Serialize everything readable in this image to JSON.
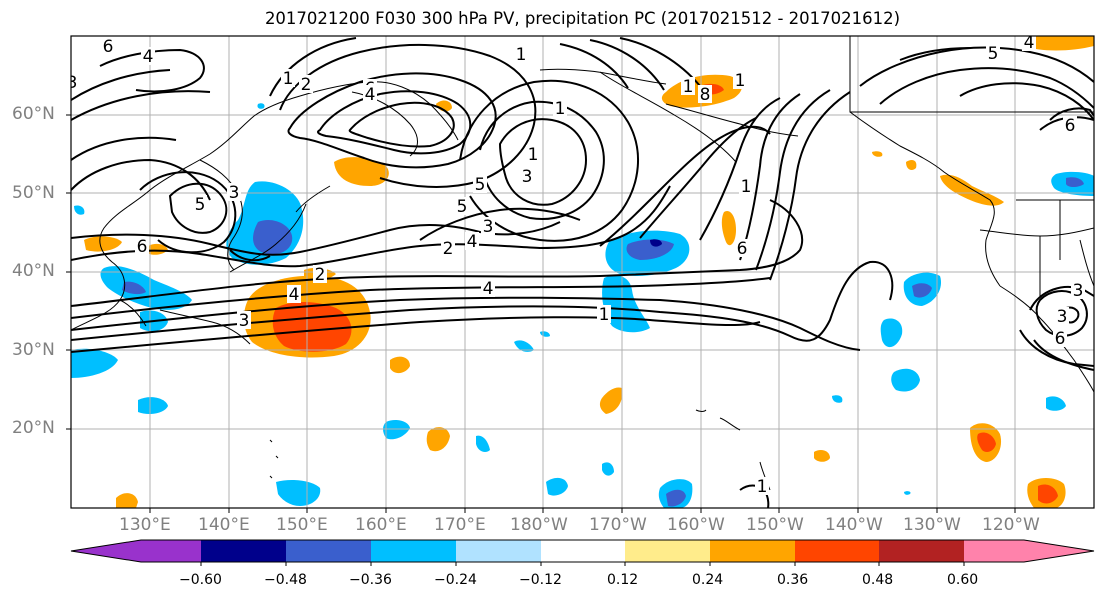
{
  "title": "2017021200 F030 300 hPa PV, precipitation PC (2017021512 - 2017021612)",
  "lat_labels": [
    "60°N",
    "50°N",
    "40°N",
    "30°N",
    "20°N"
  ],
  "lon_labels": [
    "130°E",
    "140°E",
    "150°E",
    "160°E",
    "170°E",
    "180°W",
    "170°W",
    "160°W",
    "150°W",
    "140°W",
    "130°W",
    "120°W"
  ],
  "colorbar": {
    "ticks": [
      "−0.60",
      "−0.48",
      "−0.36",
      "−0.24",
      "−0.12",
      "0.12",
      "0.24",
      "0.36",
      "0.48",
      "0.60"
    ],
    "colors": [
      "#9932cc",
      "#00008b",
      "#3a5fcd",
      "#00bfff",
      "#b0e2ff",
      "#ffffff",
      "#ffec8b",
      "#ffa500",
      "#ff4500",
      "#b22222",
      "#ff82ab"
    ]
  },
  "contour_labels": [
    "6",
    "4",
    "3",
    "1",
    "2",
    "5",
    "3",
    "6",
    "5",
    "4",
    "1",
    "6",
    "2",
    "4",
    "1",
    "3",
    "4",
    "1",
    "3",
    "3",
    "4",
    "2",
    "1",
    "6",
    "1",
    "8",
    "1",
    "1",
    "5",
    "4",
    "6",
    "5",
    "3",
    "6",
    "3",
    "1"
  ],
  "colors": {
    "contour": "#000000",
    "grid": "#b0b0b0",
    "coast": "#000000",
    "tick_label": "#808080"
  }
}
